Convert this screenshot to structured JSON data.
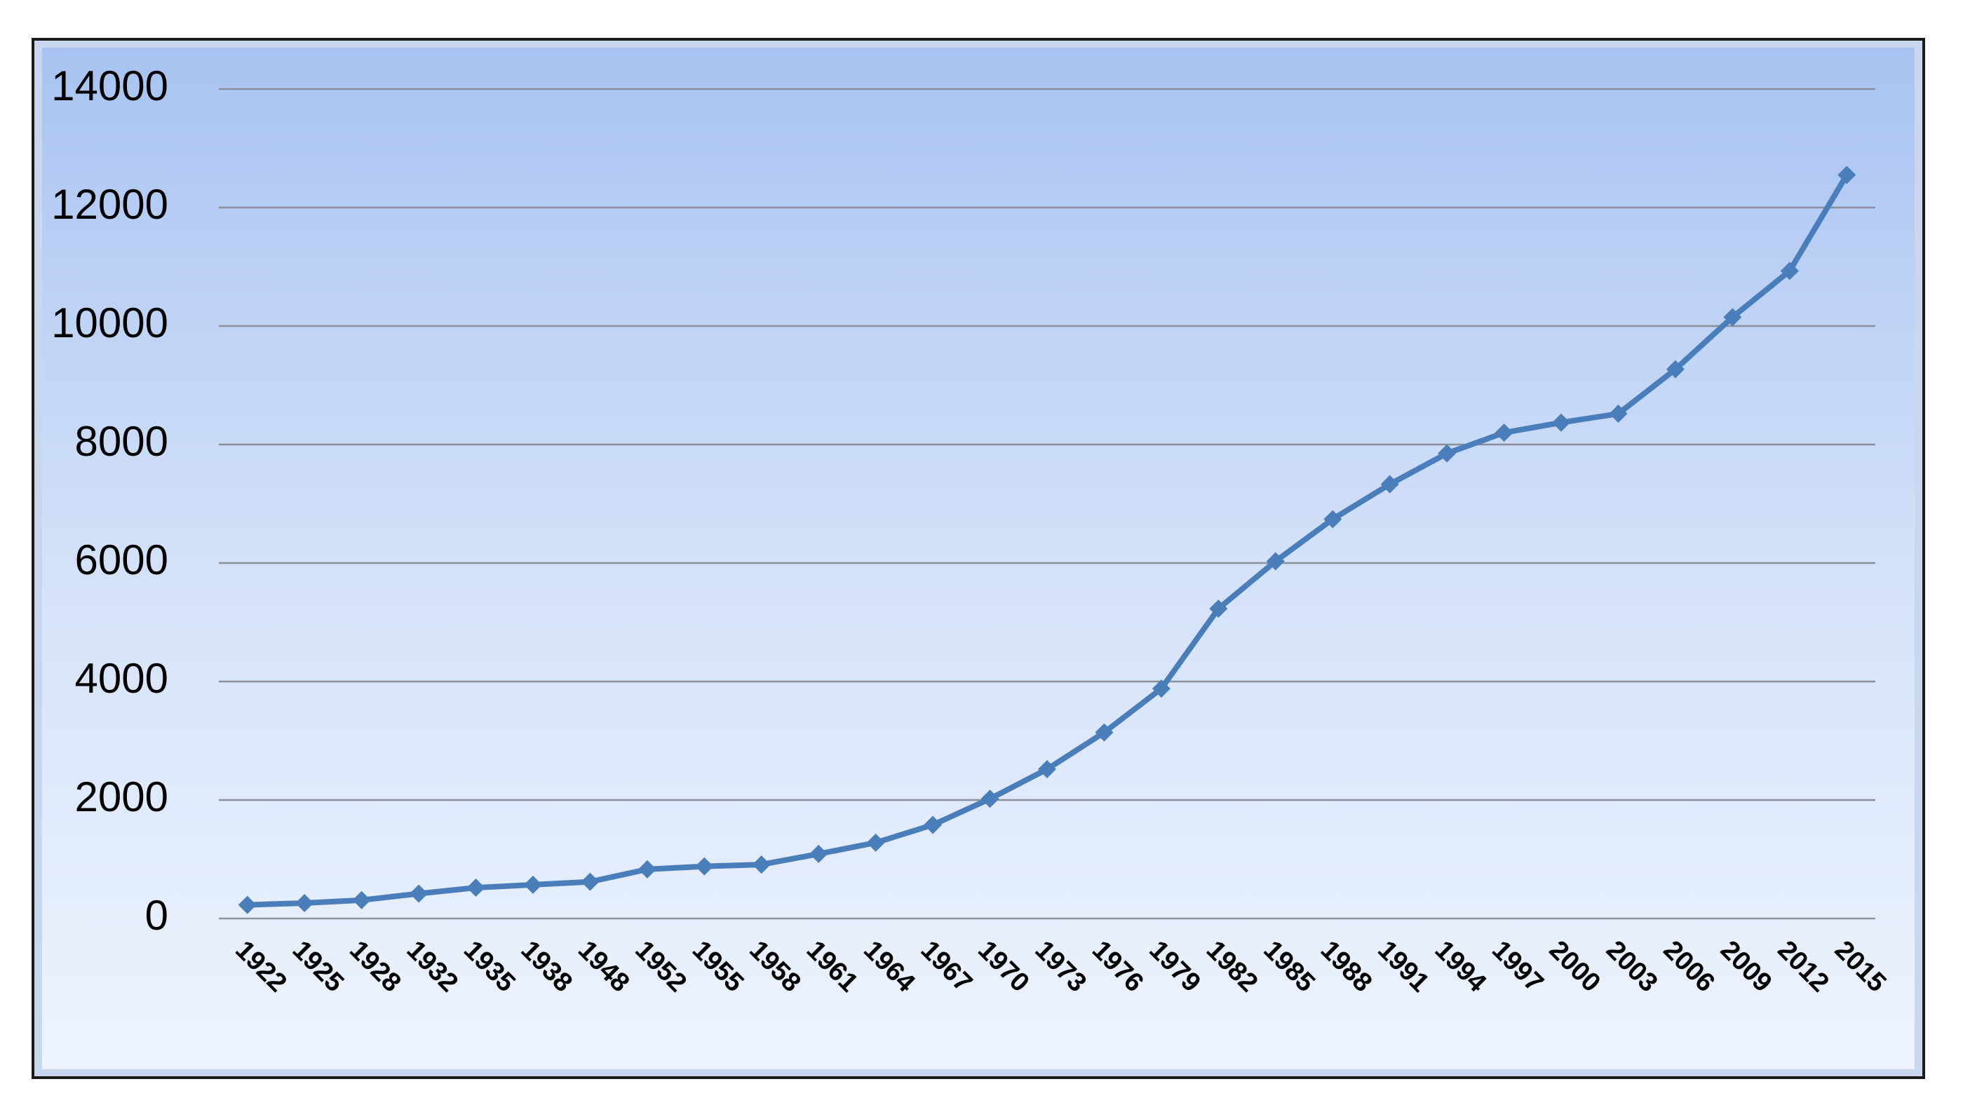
{
  "chart_data": {
    "type": "line",
    "categories": [
      "1922",
      "1925",
      "1928",
      "1932",
      "1935",
      "1938",
      "1948",
      "1952",
      "1955",
      "1958",
      "1961",
      "1964",
      "1967",
      "1970",
      "1973",
      "1976",
      "1979",
      "1982",
      "1985",
      "1988",
      "1991",
      "1994",
      "1997",
      "2000",
      "2003",
      "2006",
      "2009",
      "2012",
      "2015"
    ],
    "values": [
      230,
      260,
      310,
      420,
      520,
      570,
      620,
      830,
      880,
      910,
      1090,
      1280,
      1580,
      2020,
      2520,
      3140,
      3880,
      5230,
      6030,
      6740,
      7330,
      7850,
      8200,
      8370,
      8520,
      9270,
      10150,
      10930,
      12550
    ],
    "color": "#4a7ebb",
    "ylim": [
      0,
      14000
    ],
    "yticks": [
      0,
      2000,
      4000,
      6000,
      8000,
      10000,
      12000,
      14000
    ],
    "grid": true
  }
}
